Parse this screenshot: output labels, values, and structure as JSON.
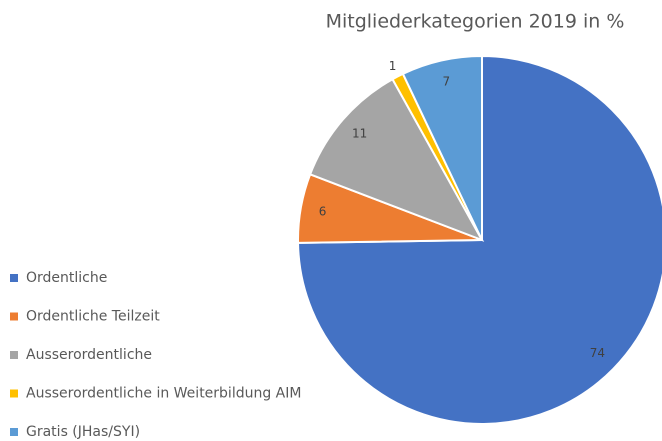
{
  "chart_data": {
    "type": "pie",
    "title": "Mitgliederkategorien 2019 in %",
    "categories": [
      "Ordentliche",
      "Ordentliche Teilzeit",
      "Ausserordentliche",
      "Ausserordentliche in Weiterbildung AIM",
      "Gratis  (JHas/SYI)"
    ],
    "values": [
      74,
      6,
      11,
      1,
      7
    ],
    "colors": [
      "#4472c4",
      "#ed7d31",
      "#a5a5a5",
      "#ffc000",
      "#5b9bd5"
    ],
    "legend": "left"
  }
}
